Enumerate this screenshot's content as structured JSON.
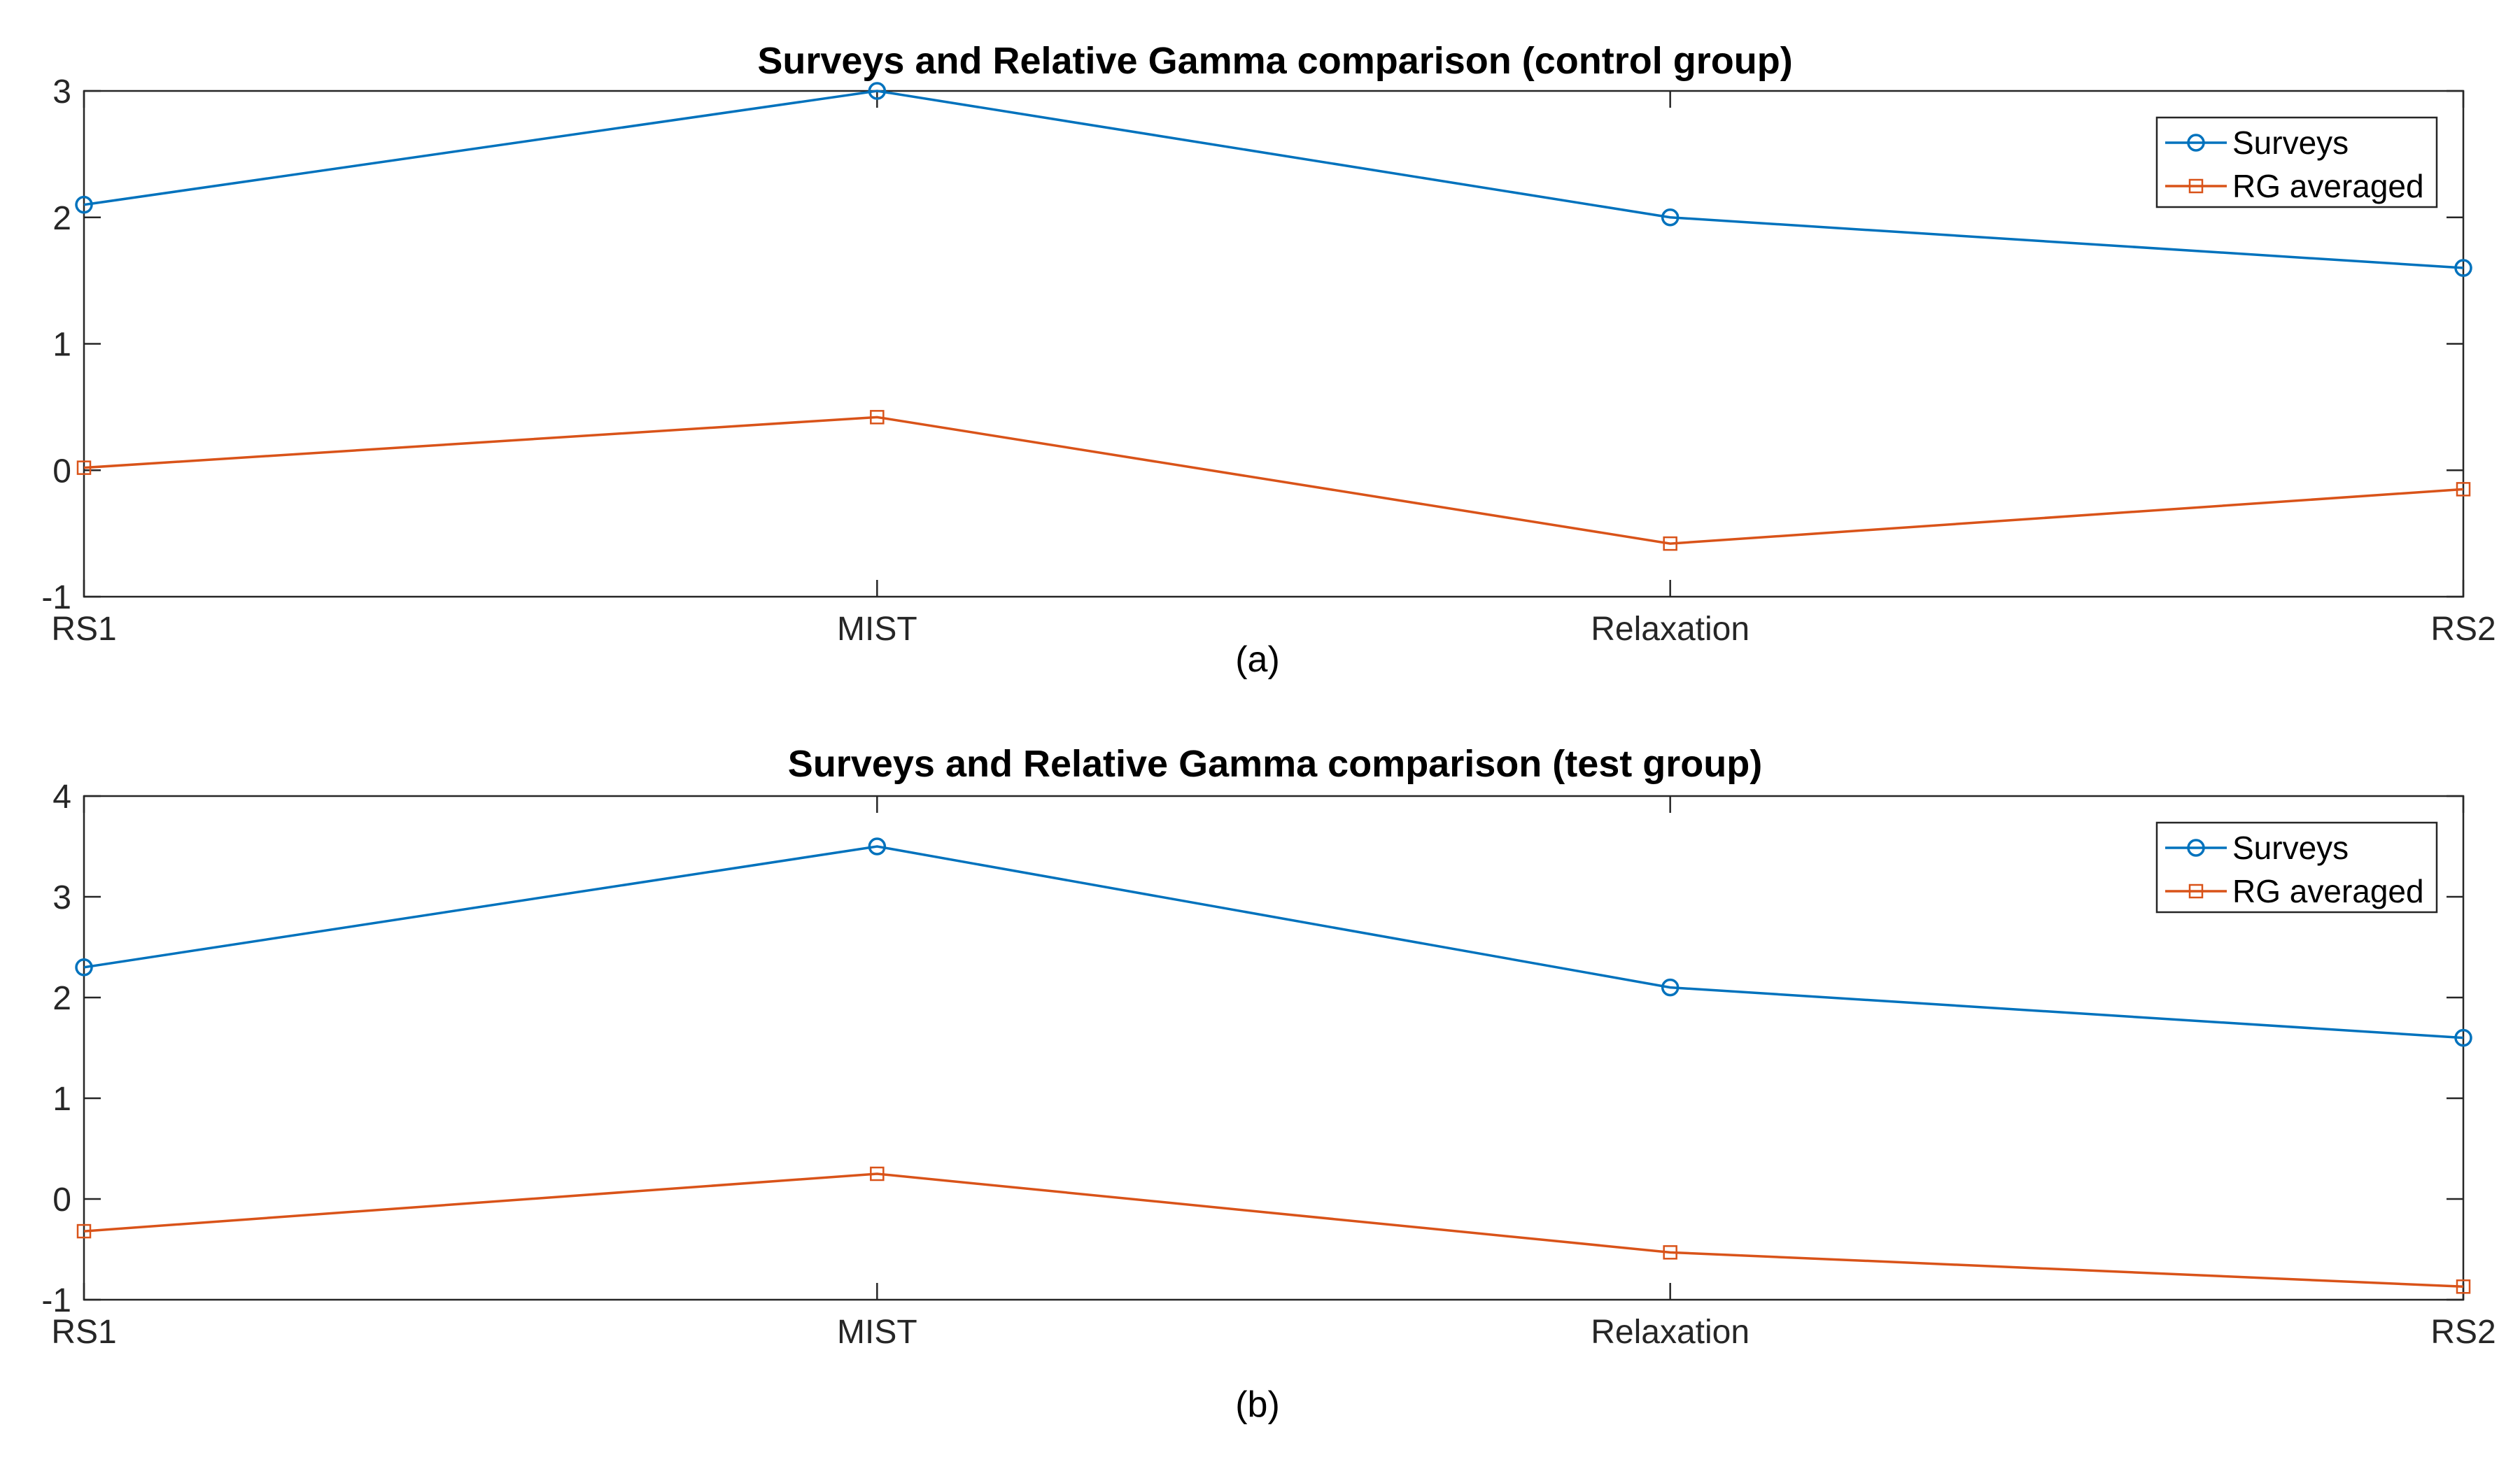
{
  "chart_data": [
    {
      "type": "line",
      "title": "Surveys and Relative Gamma comparison (control group)",
      "caption": "(a)",
      "categories": [
        "RS1",
        "MIST",
        "Relaxation",
        "RS2"
      ],
      "ylim": [
        -1,
        3
      ],
      "yticks": [
        "-1",
        "0",
        "1",
        "2",
        "3"
      ],
      "xlabel": "",
      "ylabel": "",
      "legend_position": "top-right",
      "series": [
        {
          "name": "Surveys",
          "values": [
            2.1,
            3.0,
            2.0,
            1.6
          ],
          "color": "#0072BD",
          "marker": "circle"
        },
        {
          "name": "RG averaged",
          "values": [
            0.02,
            0.42,
            -0.58,
            -0.15
          ],
          "color": "#D95319",
          "marker": "square"
        }
      ]
    },
    {
      "type": "line",
      "title": "Surveys and Relative Gamma comparison (test group)",
      "caption": "(b)",
      "categories": [
        "RS1",
        "MIST",
        "Relaxation",
        "RS2"
      ],
      "ylim": [
        -1,
        4
      ],
      "yticks": [
        "-1",
        "0",
        "1",
        "2",
        "3",
        "4"
      ],
      "xlabel": "",
      "ylabel": "",
      "legend_position": "top-right",
      "series": [
        {
          "name": "Surveys",
          "values": [
            2.3,
            3.5,
            2.1,
            1.6
          ],
          "color": "#0072BD",
          "marker": "circle"
        },
        {
          "name": "RG averaged",
          "values": [
            -0.32,
            0.25,
            -0.53,
            -0.87
          ],
          "color": "#D95319",
          "marker": "square"
        }
      ]
    }
  ]
}
